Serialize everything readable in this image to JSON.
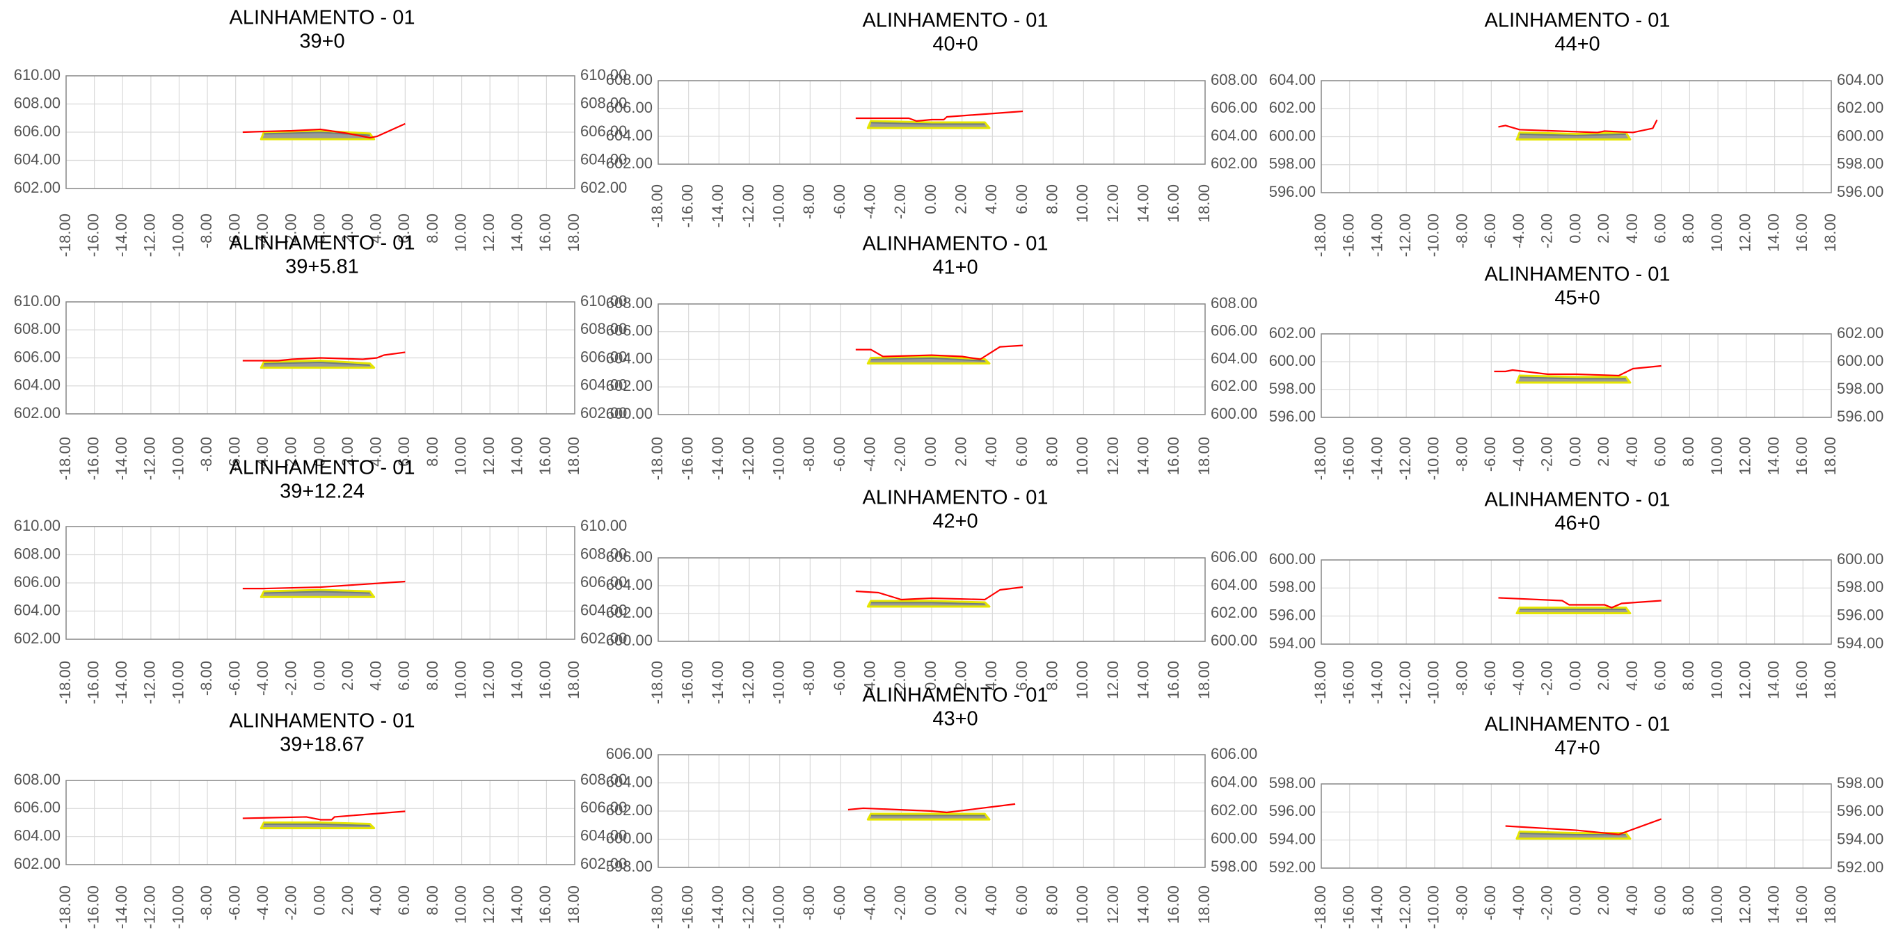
{
  "colors": {
    "terrain": "#ff0000",
    "platform": "#9a9a9a",
    "platform_edge": "#e6e600",
    "grid": "#d9d9d9",
    "frame": "#888888",
    "tick_text": "#555555"
  },
  "chart_data": [
    {
      "type": "line",
      "title": "ALINHAMENTO - 01",
      "subtitle": "39+0",
      "xlim": [
        -18,
        18
      ],
      "ylim": [
        602,
        610
      ],
      "yticks": [
        602,
        604,
        606,
        608,
        610
      ],
      "series": [
        {
          "role": "terrain",
          "points": [
            [
              -5.5,
              606.0
            ],
            [
              -4,
              606.05
            ],
            [
              -2,
              606.1
            ],
            [
              0,
              606.2
            ],
            [
              2,
              605.9
            ],
            [
              3.5,
              605.6
            ],
            [
              4,
              605.7
            ],
            [
              6,
              606.6
            ]
          ]
        },
        {
          "role": "platform",
          "top": [
            [
              -4,
              606.0
            ],
            [
              0,
              606.1
            ],
            [
              3.5,
              605.9
            ]
          ],
          "bottom": [
            [
              -4.2,
              605.5
            ],
            [
              3.8,
              605.5
            ]
          ]
        }
      ]
    },
    {
      "type": "line",
      "title": "ALINHAMENTO - 01",
      "subtitle": "40+0",
      "xlim": [
        -18,
        18
      ],
      "ylim": [
        602,
        608
      ],
      "yticks": [
        602,
        604,
        606,
        608
      ],
      "series": [
        {
          "role": "terrain",
          "points": [
            [
              -5,
              605.3
            ],
            [
              -1.5,
              605.3
            ],
            [
              -1,
              605.1
            ],
            [
              0,
              605.2
            ],
            [
              0.8,
              605.2
            ],
            [
              1,
              605.4
            ],
            [
              6,
              605.8
            ]
          ]
        },
        {
          "role": "platform",
          "top": [
            [
              -4,
              605.1
            ],
            [
              0,
              605.0
            ],
            [
              3.5,
              605.0
            ]
          ],
          "bottom": [
            [
              -4.2,
              604.6
            ],
            [
              3.8,
              604.6
            ]
          ]
        }
      ]
    },
    {
      "type": "line",
      "title": "ALINHAMENTO - 01",
      "subtitle": "44+0",
      "xlim": [
        -18,
        18
      ],
      "ylim": [
        596,
        604
      ],
      "yticks": [
        596,
        598,
        600,
        602,
        604
      ],
      "series": [
        {
          "role": "terrain",
          "points": [
            [
              -5.5,
              600.7
            ],
            [
              -5,
              600.8
            ],
            [
              -4,
              600.5
            ],
            [
              1.5,
              600.3
            ],
            [
              2,
              600.4
            ],
            [
              4,
              600.3
            ],
            [
              5.4,
              600.6
            ],
            [
              5.7,
              601.2
            ]
          ]
        },
        {
          "role": "platform",
          "top": [
            [
              -4,
              600.3
            ],
            [
              0,
              600.2
            ],
            [
              3.5,
              600.3
            ]
          ],
          "bottom": [
            [
              -4.2,
              599.8
            ],
            [
              3.8,
              599.8
            ]
          ]
        }
      ]
    },
    {
      "type": "line",
      "title": "ALINHAMENTO - 01",
      "subtitle": "39+5.81",
      "xlim": [
        -18,
        18
      ],
      "ylim": [
        602,
        610
      ],
      "yticks": [
        602,
        604,
        606,
        608,
        610
      ],
      "series": [
        {
          "role": "terrain",
          "points": [
            [
              -5.5,
              605.8
            ],
            [
              -3,
              605.8
            ],
            [
              -2,
              605.9
            ],
            [
              0,
              606.0
            ],
            [
              3,
              605.9
            ],
            [
              4,
              606.0
            ],
            [
              4.5,
              606.2
            ],
            [
              6,
              606.4
            ]
          ]
        },
        {
          "role": "platform",
          "top": [
            [
              -4,
              605.7
            ],
            [
              0,
              605.8
            ],
            [
              3.5,
              605.6
            ]
          ],
          "bottom": [
            [
              -4.2,
              605.3
            ],
            [
              3.8,
              605.3
            ]
          ]
        }
      ]
    },
    {
      "type": "line",
      "title": "ALINHAMENTO - 01",
      "subtitle": "41+0",
      "xlim": [
        -18,
        18
      ],
      "ylim": [
        600,
        608
      ],
      "yticks": [
        600,
        602,
        604,
        606,
        608
      ],
      "series": [
        {
          "role": "terrain",
          "points": [
            [
              -5,
              604.7
            ],
            [
              -4,
              604.7
            ],
            [
              -3.2,
              604.2
            ],
            [
              0,
              604.3
            ],
            [
              2,
              604.2
            ],
            [
              3.2,
              604.0
            ],
            [
              4.5,
              604.9
            ],
            [
              6,
              605.0
            ]
          ]
        },
        {
          "role": "platform",
          "top": [
            [
              -4,
              604.1
            ],
            [
              0,
              604.2
            ],
            [
              3.5,
              604.0
            ]
          ],
          "bottom": [
            [
              -4.2,
              603.7
            ],
            [
              3.8,
              603.7
            ]
          ]
        }
      ]
    },
    {
      "type": "line",
      "title": "ALINHAMENTO - 01",
      "subtitle": "45+0",
      "xlim": [
        -18,
        18
      ],
      "ylim": [
        596,
        602
      ],
      "yticks": [
        596,
        598,
        600,
        602
      ],
      "series": [
        {
          "role": "terrain",
          "points": [
            [
              -5.8,
              599.3
            ],
            [
              -5,
              599.3
            ],
            [
              -4.5,
              599.4
            ],
            [
              -2,
              599.1
            ],
            [
              0,
              599.1
            ],
            [
              3,
              599.0
            ],
            [
              4,
              599.5
            ],
            [
              6,
              599.7
            ]
          ]
        },
        {
          "role": "platform",
          "top": [
            [
              -4,
              599.0
            ],
            [
              0,
              598.9
            ],
            [
              3.5,
              598.9
            ]
          ],
          "bottom": [
            [
              -4.2,
              598.5
            ],
            [
              3.8,
              598.5
            ]
          ]
        }
      ]
    },
    {
      "type": "line",
      "title": "ALINHAMENTO - 01",
      "subtitle": "39+12.24",
      "xlim": [
        -18,
        18
      ],
      "ylim": [
        602,
        610
      ],
      "yticks": [
        602,
        604,
        606,
        608,
        610
      ],
      "series": [
        {
          "role": "terrain",
          "points": [
            [
              -5.5,
              605.6
            ],
            [
              -4,
              605.6
            ],
            [
              0,
              605.7
            ],
            [
              6,
              606.1
            ]
          ]
        },
        {
          "role": "platform",
          "top": [
            [
              -4,
              605.4
            ],
            [
              0,
              605.5
            ],
            [
              3.5,
              605.4
            ]
          ],
          "bottom": [
            [
              -4.2,
              605.0
            ],
            [
              3.8,
              605.0
            ]
          ]
        }
      ]
    },
    {
      "type": "line",
      "title": "ALINHAMENTO - 01",
      "subtitle": "42+0",
      "xlim": [
        -18,
        18
      ],
      "ylim": [
        600,
        606
      ],
      "yticks": [
        600,
        602,
        604,
        606
      ],
      "series": [
        {
          "role": "terrain",
          "points": [
            [
              -5,
              603.6
            ],
            [
              -3.5,
              603.5
            ],
            [
              -2,
              603.0
            ],
            [
              0,
              603.1
            ],
            [
              3.5,
              603.0
            ],
            [
              4.5,
              603.7
            ],
            [
              6,
              603.9
            ]
          ]
        },
        {
          "role": "platform",
          "top": [
            [
              -4,
              602.9
            ],
            [
              0,
              602.9
            ],
            [
              3.5,
              602.8
            ]
          ],
          "bottom": [
            [
              -4.2,
              602.5
            ],
            [
              3.8,
              602.5
            ]
          ]
        }
      ]
    },
    {
      "type": "line",
      "title": "ALINHAMENTO - 01",
      "subtitle": "46+0",
      "xlim": [
        -18,
        18
      ],
      "ylim": [
        594,
        600
      ],
      "yticks": [
        594,
        596,
        598,
        600
      ],
      "series": [
        {
          "role": "terrain",
          "points": [
            [
              -5.5,
              597.3
            ],
            [
              -1,
              597.1
            ],
            [
              -0.5,
              596.8
            ],
            [
              2,
              596.8
            ],
            [
              2.5,
              596.6
            ],
            [
              3.2,
              596.9
            ],
            [
              6,
              597.1
            ]
          ]
        },
        {
          "role": "platform",
          "top": [
            [
              -4,
              596.6
            ],
            [
              0,
              596.6
            ],
            [
              3.5,
              596.6
            ]
          ],
          "bottom": [
            [
              -4.2,
              596.2
            ],
            [
              3.8,
              596.2
            ]
          ]
        }
      ]
    },
    {
      "type": "line",
      "title": "ALINHAMENTO - 01",
      "subtitle": "39+18.67",
      "xlim": [
        -18,
        18
      ],
      "ylim": [
        602,
        608
      ],
      "yticks": [
        602,
        604,
        606,
        608
      ],
      "series": [
        {
          "role": "terrain",
          "points": [
            [
              -5.5,
              605.3
            ],
            [
              -1,
              605.4
            ],
            [
              0,
              605.2
            ],
            [
              0.8,
              605.2
            ],
            [
              1,
              605.4
            ],
            [
              6,
              605.8
            ]
          ]
        },
        {
          "role": "platform",
          "top": [
            [
              -4,
              605.0
            ],
            [
              0,
              605.0
            ],
            [
              3.5,
              604.9
            ]
          ],
          "bottom": [
            [
              -4.2,
              604.6
            ],
            [
              3.8,
              604.6
            ]
          ]
        }
      ]
    },
    {
      "type": "line",
      "title": "ALINHAMENTO - 01",
      "subtitle": "43+0",
      "xlim": [
        -18,
        18
      ],
      "ylim": [
        598,
        606
      ],
      "yticks": [
        598,
        600,
        602,
        604,
        606
      ],
      "series": [
        {
          "role": "terrain",
          "points": [
            [
              -5.5,
              602.1
            ],
            [
              -4.5,
              602.2
            ],
            [
              0,
              602.0
            ],
            [
              1,
              601.9
            ],
            [
              5.5,
              602.5
            ]
          ]
        },
        {
          "role": "platform",
          "top": [
            [
              -4,
              601.8
            ],
            [
              0,
              601.8
            ],
            [
              3.5,
              601.8
            ]
          ],
          "bottom": [
            [
              -4.2,
              601.4
            ],
            [
              3.8,
              601.4
            ]
          ]
        }
      ]
    },
    {
      "type": "line",
      "title": "ALINHAMENTO - 01",
      "subtitle": "47+0",
      "xlim": [
        -18,
        18
      ],
      "ylim": [
        592,
        598
      ],
      "yticks": [
        592,
        594,
        596,
        598
      ],
      "series": [
        {
          "role": "terrain",
          "points": [
            [
              -5,
              595.0
            ],
            [
              0,
              594.7
            ],
            [
              3,
              594.4
            ],
            [
              6,
              595.5
            ]
          ]
        },
        {
          "role": "platform",
          "top": [
            [
              -4,
              594.6
            ],
            [
              0,
              594.5
            ],
            [
              3.5,
              594.5
            ]
          ],
          "bottom": [
            [
              -4.2,
              594.1
            ],
            [
              3.8,
              594.1
            ]
          ]
        }
      ]
    }
  ]
}
